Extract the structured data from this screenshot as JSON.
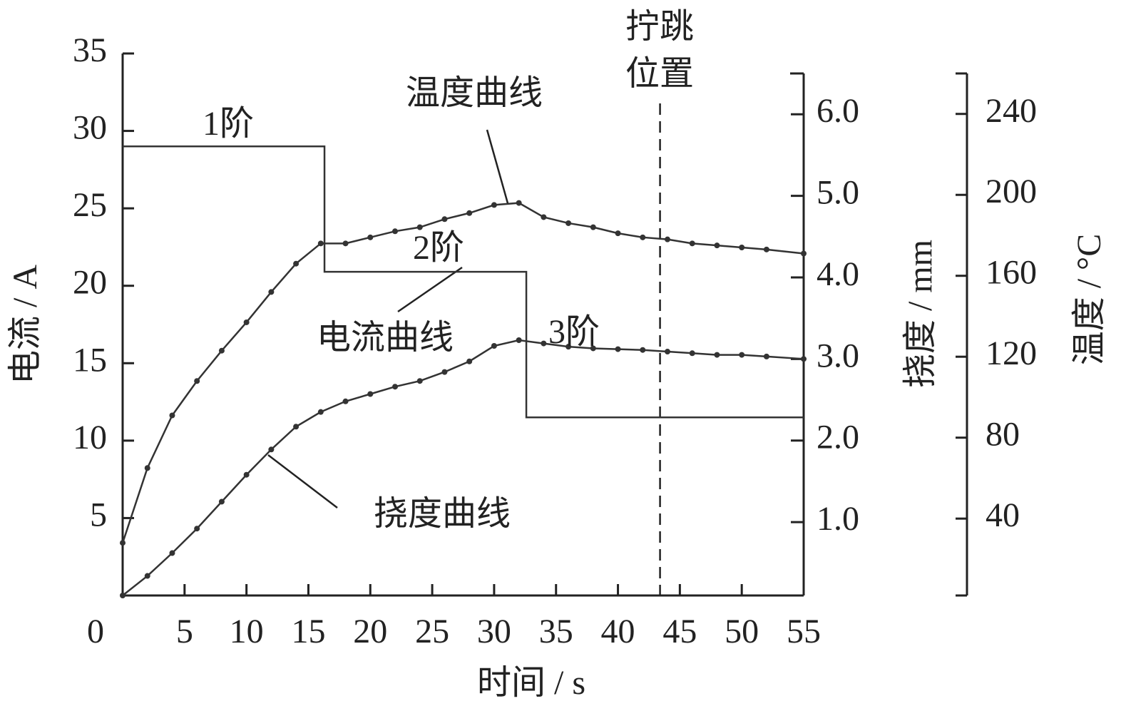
{
  "chart_data": {
    "type": "line",
    "xlabel": "时间 / s",
    "ylabel": "电流 / A",
    "y2label": "挠度 / mm",
    "y3label": "温度 / °C",
    "xlim": [
      0,
      55
    ],
    "xticks": [
      0,
      5,
      10,
      15,
      20,
      25,
      30,
      35,
      40,
      45,
      50,
      55
    ],
    "ylim": [
      0,
      35
    ],
    "yticks": [
      5,
      10,
      15,
      20,
      25,
      30,
      35
    ],
    "y2lim": [
      0.1,
      6.5
    ],
    "y2ticks": [
      {
        "value": 1,
        "label": "1.0"
      },
      {
        "value": 2,
        "label": "2.0"
      },
      {
        "value": 3,
        "label": "3.0"
      },
      {
        "value": 4,
        "label": "4.0"
      },
      {
        "value": 5,
        "label": "5.0"
      },
      {
        "value": 6,
        "label": "6.0"
      }
    ],
    "y3lim": [
      2,
      260
    ],
    "y3ticks": [
      40,
      80,
      120,
      160,
      200,
      240
    ],
    "series": [
      {
        "name": "电流曲线",
        "color": "#333333",
        "axis": "y",
        "markers": false,
        "x": [
          0,
          16.3,
          16.3,
          32.6,
          32.6,
          55
        ],
        "values": [
          29,
          29,
          20.9,
          20.9,
          11.5,
          11.5
        ]
      },
      {
        "name": "温度曲线",
        "color": "#333333",
        "axis": "y3",
        "markers": true,
        "x": [
          0,
          2,
          4,
          6,
          8,
          10,
          12,
          14,
          16,
          18,
          20,
          22,
          24,
          26,
          28,
          30,
          32,
          34,
          36,
          38,
          40,
          42,
          44,
          46,
          48,
          50,
          52,
          55
        ],
        "values": [
          28,
          65,
          91,
          108,
          123,
          137,
          152,
          166,
          176,
          176,
          179,
          182,
          184,
          188,
          191,
          195,
          196,
          189,
          186,
          184,
          181,
          179,
          178,
          176,
          175,
          174,
          173,
          171
        ]
      },
      {
        "name": "挠度曲线",
        "color": "#333333",
        "axis": "y2",
        "markers": true,
        "x": [
          0,
          2,
          4,
          6,
          8,
          10,
          12,
          14,
          16,
          18,
          20,
          22,
          24,
          26,
          28,
          30,
          32,
          34,
          36,
          38,
          40,
          42,
          44,
          46,
          48,
          50,
          52,
          55
        ],
        "values": [
          0.1,
          0.34,
          0.62,
          0.92,
          1.25,
          1.58,
          1.89,
          2.17,
          2.35,
          2.48,
          2.57,
          2.66,
          2.73,
          2.84,
          2.97,
          3.16,
          3.23,
          3.19,
          3.15,
          3.13,
          3.12,
          3.11,
          3.09,
          3.07,
          3.05,
          3.05,
          3.03,
          3.0
        ]
      }
    ],
    "stage_labels": [
      "1阶",
      "2阶",
      "3阶"
    ],
    "trip_line_x": 43.4,
    "trip_label": [
      "拧跳",
      "位置"
    ]
  }
}
